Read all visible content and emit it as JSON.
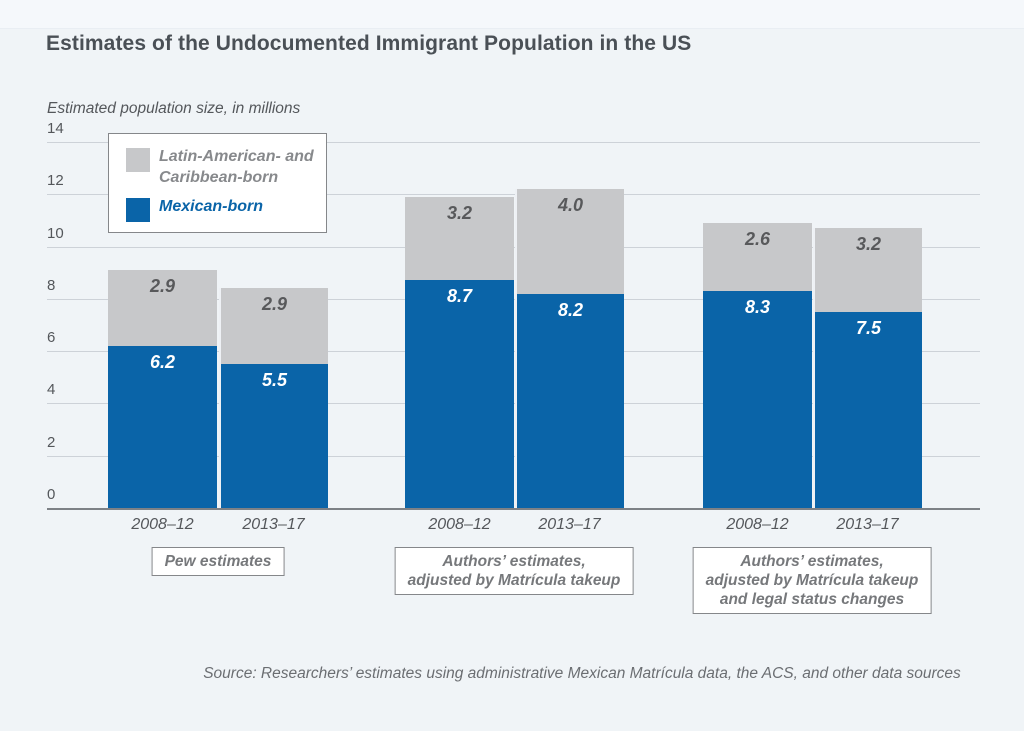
{
  "title": "Estimates of the Undocumented Immigrant Population in the US",
  "subtitle": "Estimated population size, in millions",
  "source": "Source: Researchers’ estimates using administrative Mexican Matrícula data, the ACS, and other data sources",
  "colors": {
    "mexican_blue": "#0a64a8",
    "latin_gray": "#c7c8ca",
    "gridline": "#cdd2d8",
    "baseline": "#7d8186",
    "gray_label_text": "#58595b",
    "white_label_text": "#ffffff",
    "background": "#f0f4f7"
  },
  "legend": {
    "items": [
      {
        "name": "Latin-American- and Caribbean-born",
        "lines": [
          "Latin-American- and",
          "Caribbean-born"
        ],
        "swatch_color": "#c7c8ca",
        "text_color": "#87898c"
      },
      {
        "name": "Mexican-born",
        "lines": [
          "Mexican-born"
        ],
        "swatch_color": "#0a64a8",
        "text_color": "#0a64a8"
      }
    ]
  },
  "chart_data": {
    "type": "bar",
    "stacked": true,
    "title": "Estimates of the Undocumented Immigrant Population in the US",
    "ylabel": "Estimated population size, in millions",
    "xlabel": "",
    "ylim": [
      0,
      14
    ],
    "yticks": [
      0,
      2,
      4,
      6,
      8,
      10,
      12,
      14
    ],
    "grid": true,
    "legend_position": "top-left",
    "categories": [
      "2008–12",
      "2013–17"
    ],
    "series": [
      {
        "name": "Mexican-born",
        "color": "#0a64a8",
        "label_color": "#ffffff"
      },
      {
        "name": "Latin-American- and Caribbean-born",
        "color": "#c7c8ca",
        "label_color": "#58595b"
      }
    ],
    "groups": [
      {
        "label_lines": [
          "Pew estimates"
        ],
        "bars": [
          {
            "category": "2008–12",
            "mexican_born": 6.2,
            "latin_caribbean": 2.9
          },
          {
            "category": "2013–17",
            "mexican_born": 5.5,
            "latin_caribbean": 2.9
          }
        ]
      },
      {
        "label_lines": [
          "Authors’ estimates,",
          "adjusted by Matrícula takeup"
        ],
        "bars": [
          {
            "category": "2008–12",
            "mexican_born": 8.7,
            "latin_caribbean": 3.2
          },
          {
            "category": "2013–17",
            "mexican_born": 8.2,
            "latin_caribbean": 4.0
          }
        ]
      },
      {
        "label_lines": [
          "Authors’ estimates,",
          "adjusted by Matrícula takeup",
          "and legal status changes"
        ],
        "bars": [
          {
            "category": "2008–12",
            "mexican_born": 8.3,
            "latin_caribbean": 2.6
          },
          {
            "category": "2013–17",
            "mexican_born": 7.5,
            "latin_caribbean": 3.2
          }
        ]
      }
    ]
  }
}
